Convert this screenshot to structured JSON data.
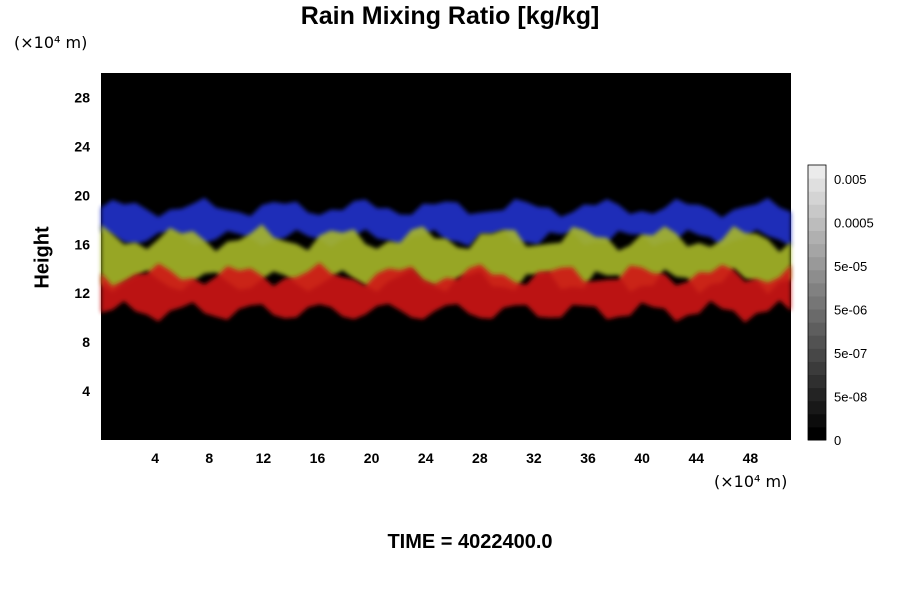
{
  "chart_data": {
    "type": "heatmap",
    "title": "Rain Mixing Ratio [kg/kg]",
    "ylabel": "Height",
    "xlabel": "",
    "x_unit": "(×10⁴ m)",
    "y_unit": "(×10⁴ m)",
    "xlim": [
      0,
      51
    ],
    "ylim": [
      0,
      30
    ],
    "x_ticks": [
      4,
      8,
      12,
      16,
      20,
      24,
      28,
      32,
      36,
      40,
      44,
      48
    ],
    "y_ticks": [
      4,
      8,
      12,
      16,
      20,
      24,
      28
    ],
    "colorbar": {
      "tick_labels": [
        "0.005",
        "0.0005",
        "5e-05",
        "5e-06",
        "5e-07",
        "5e-08",
        "0"
      ]
    },
    "background_color": "#000000",
    "layers": [
      {
        "color": "#2233cc",
        "y_range": [
          16.5,
          19
        ]
      },
      {
        "color": "#a8b82a",
        "y_range": [
          13,
          16.5
        ]
      },
      {
        "color": "#d01818",
        "y_range": [
          10.5,
          13.5
        ]
      }
    ]
  },
  "time_label": "TIME = 4022400.0"
}
